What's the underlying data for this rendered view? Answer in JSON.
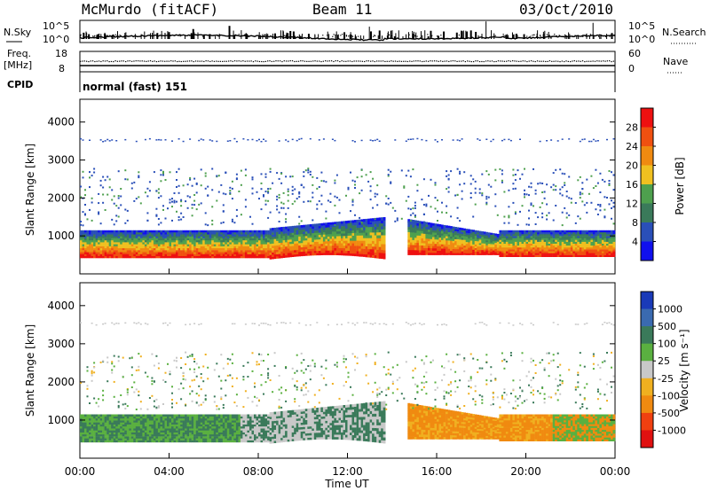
{
  "header": {
    "station": "McMurdo (fitACF)",
    "beam": "Beam 11",
    "date": "03/Oct/2010"
  },
  "top_panel": {
    "left_label": "N.Sky",
    "right_label": "N.Search",
    "left_ticks": [
      "10^5",
      "10^0"
    ],
    "right_ticks": [
      "10^5",
      "10^0"
    ]
  },
  "freq_panel": {
    "left_label_1": "Freq.",
    "left_label_2": "[MHz]",
    "left_ticks": [
      "18",
      "8"
    ],
    "right_ticks": [
      "60",
      "0"
    ],
    "right_label": "Nave"
  },
  "cpid_panel": {
    "label": "CPID",
    "value": "normal (fast) 151"
  },
  "chart_data": [
    {
      "type": "heatmap",
      "quantity": "Power",
      "ylabel": "Slant Range [km]",
      "y_ticks": [
        "1000",
        "2000",
        "3000",
        "4000"
      ],
      "colorbar": {
        "label": "Power [dB]",
        "ticks": [
          "4",
          "8",
          "12",
          "16",
          "20",
          "24",
          "28"
        ],
        "colors": [
          "#1010ee",
          "#2a4fb8",
          "#3a7a5a",
          "#4ea04e",
          "#f0c020",
          "#f08a10",
          "#f05010",
          "#ee1010"
        ]
      }
    },
    {
      "type": "heatmap",
      "quantity": "Velocity",
      "ylabel": "Slant Range [km]",
      "y_ticks": [
        "1000",
        "2000",
        "3000",
        "4000"
      ],
      "colorbar": {
        "label": "Velocity [m s⁻¹]",
        "ticks": [
          "1000",
          "500",
          "100",
          "25",
          "-25",
          "-100",
          "-500",
          "-1000"
        ],
        "colors": [
          "#1a3ab8",
          "#3a6ab0",
          "#3a7a5a",
          "#5ab040",
          "#c8c8c8",
          "#f0b020",
          "#f08a10",
          "#f04010",
          "#e01010"
        ]
      }
    }
  ],
  "x_axis": {
    "ticks": [
      "00:00",
      "04:00",
      "08:00",
      "12:00",
      "16:00",
      "20:00",
      "00:00"
    ],
    "label": "Time UT"
  }
}
